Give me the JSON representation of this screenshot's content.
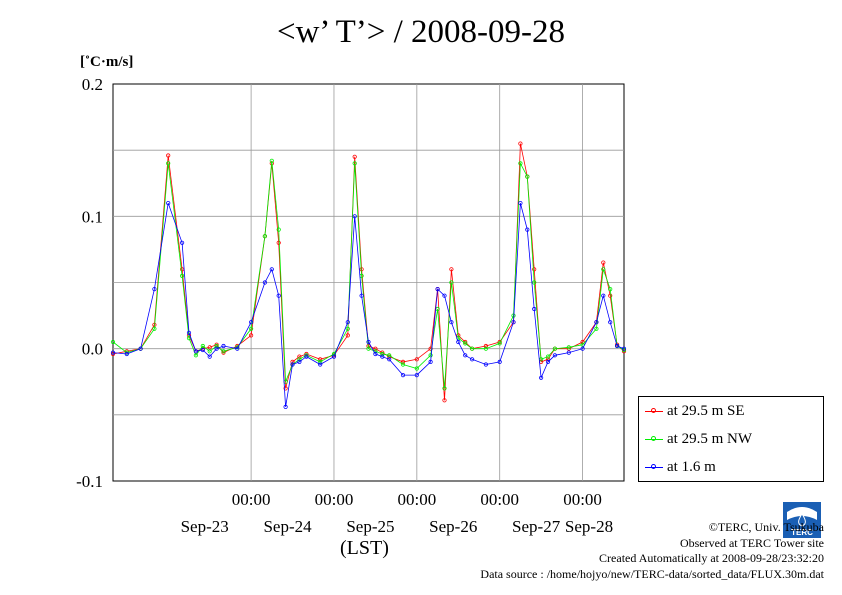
{
  "title": "<w’ T’> / 2008-09-28",
  "y_unit": "[˚C·m/s]",
  "x_axis_label": "(LST)",
  "credits": {
    "copyright": "©TERC, Univ. Tsukuba",
    "observed": "Observed at TERC Tower site",
    "created": "Created Automatically at 2008-09-28/23:32:20",
    "source": "Data source : /home/hojyo/new/TERC-data/sorted_data/FLUX.30m.dat"
  },
  "logo_text": "TERC",
  "chart_data": {
    "type": "line",
    "ylim": [
      -0.1,
      0.2
    ],
    "xlim": [
      "2008-09-22 08:00",
      "2008-09-28 12:00"
    ],
    "x_tick_labels": [
      "00:00",
      "00:00",
      "00:00",
      "00:00",
      "00:00"
    ],
    "date_labels": [
      "Sep-23",
      "Sep-24",
      "Sep-25",
      "Sep-26",
      "Sep-27",
      "Sep-28"
    ],
    "y_tick_labels": [
      "0.2",
      "0.1",
      "0.0",
      "-0.1"
    ],
    "y_ticks": [
      0.2,
      0.1,
      0.0,
      -0.1
    ],
    "grid": true,
    "legend_position": "bottom-right",
    "colors": {
      "se": "#ff0000",
      "nw": "#00ee00",
      "low": "#0000ff"
    },
    "series": [
      {
        "name": "at 29.5 m SE",
        "x": [
          "2008-09-22 08:00",
          "2008-09-22 12:00",
          "2008-09-22 16:00",
          "2008-09-22 20:00",
          "2008-09-23 00:00",
          "2008-09-23 04:00",
          "2008-09-23 06:00",
          "2008-09-23 08:00",
          "2008-09-23 10:00",
          "2008-09-23 12:00",
          "2008-09-23 14:00",
          "2008-09-23 16:00",
          "2008-09-23 20:00",
          "2008-09-24 00:00",
          "2008-09-24 04:00",
          "2008-09-24 06:00",
          "2008-09-24 08:00",
          "2008-09-24 10:00",
          "2008-09-24 12:00",
          "2008-09-24 14:00",
          "2008-09-24 16:00",
          "2008-09-24 20:00",
          "2008-09-25 00:00",
          "2008-09-25 04:00",
          "2008-09-25 06:00",
          "2008-09-25 08:00",
          "2008-09-25 10:00",
          "2008-09-25 12:00",
          "2008-09-25 14:00",
          "2008-09-25 16:00",
          "2008-09-25 20:00",
          "2008-09-26 00:00",
          "2008-09-26 04:00",
          "2008-09-26 06:00",
          "2008-09-26 08:00",
          "2008-09-26 10:00",
          "2008-09-26 12:00",
          "2008-09-26 14:00",
          "2008-09-26 16:00",
          "2008-09-26 20:00",
          "2008-09-27 00:00",
          "2008-09-27 04:00",
          "2008-09-27 06:00",
          "2008-09-27 08:00",
          "2008-09-27 10:00",
          "2008-09-27 12:00",
          "2008-09-27 14:00",
          "2008-09-27 16:00",
          "2008-09-27 20:00",
          "2008-09-28 00:00",
          "2008-09-28 04:00",
          "2008-09-28 06:00",
          "2008-09-28 08:00",
          "2008-09-28 10:00",
          "2008-09-28 12:00"
        ],
        "values": [
          -0.004,
          -0.002,
          0.0,
          0.018,
          0.146,
          0.06,
          0.01,
          -0.002,
          0.0,
          0.001,
          0.003,
          -0.003,
          0.002,
          0.01,
          0.085,
          0.14,
          0.08,
          -0.03,
          -0.01,
          -0.006,
          -0.004,
          -0.008,
          -0.005,
          0.01,
          0.145,
          0.06,
          0.002,
          0.0,
          -0.003,
          -0.006,
          -0.01,
          -0.008,
          0.0,
          0.045,
          -0.039,
          0.06,
          0.01,
          0.005,
          0.0,
          0.002,
          0.005,
          0.02,
          0.155,
          0.13,
          0.06,
          -0.01,
          -0.008,
          0.0,
          0.0,
          0.005,
          0.02,
          0.065,
          0.04,
          0.003,
          -0.002
        ]
      },
      {
        "name": "at 29.5 m NW",
        "x": [
          "2008-09-22 08:00",
          "2008-09-22 12:00",
          "2008-09-22 16:00",
          "2008-09-22 20:00",
          "2008-09-23 00:00",
          "2008-09-23 04:00",
          "2008-09-23 06:00",
          "2008-09-23 08:00",
          "2008-09-23 10:00",
          "2008-09-23 12:00",
          "2008-09-23 14:00",
          "2008-09-23 16:00",
          "2008-09-23 20:00",
          "2008-09-24 00:00",
          "2008-09-24 04:00",
          "2008-09-24 06:00",
          "2008-09-24 08:00",
          "2008-09-24 10:00",
          "2008-09-24 12:00",
          "2008-09-24 14:00",
          "2008-09-24 16:00",
          "2008-09-24 20:00",
          "2008-09-25 00:00",
          "2008-09-25 04:00",
          "2008-09-25 06:00",
          "2008-09-25 08:00",
          "2008-09-25 10:00",
          "2008-09-25 12:00",
          "2008-09-25 14:00",
          "2008-09-25 16:00",
          "2008-09-25 20:00",
          "2008-09-26 00:00",
          "2008-09-26 04:00",
          "2008-09-26 06:00",
          "2008-09-26 08:00",
          "2008-09-26 10:00",
          "2008-09-26 12:00",
          "2008-09-26 14:00",
          "2008-09-26 16:00",
          "2008-09-26 20:00",
          "2008-09-27 00:00",
          "2008-09-27 04:00",
          "2008-09-27 06:00",
          "2008-09-27 08:00",
          "2008-09-27 10:00",
          "2008-09-27 12:00",
          "2008-09-27 14:00",
          "2008-09-27 16:00",
          "2008-09-27 20:00",
          "2008-09-28 00:00",
          "2008-09-28 04:00",
          "2008-09-28 06:00",
          "2008-09-28 08:00",
          "2008-09-28 10:00",
          "2008-09-28 12:00"
        ],
        "values": [
          0.005,
          -0.003,
          0.0,
          0.015,
          0.14,
          0.055,
          0.008,
          -0.005,
          0.002,
          -0.002,
          0.002,
          -0.002,
          0.001,
          0.015,
          0.085,
          0.142,
          0.09,
          -0.025,
          -0.012,
          -0.008,
          -0.005,
          -0.01,
          -0.004,
          0.015,
          0.14,
          0.055,
          0.0,
          -0.002,
          -0.004,
          -0.005,
          -0.012,
          -0.015,
          -0.005,
          0.03,
          -0.03,
          0.05,
          0.008,
          0.004,
          0.0,
          0.0,
          0.004,
          0.025,
          0.14,
          0.13,
          0.05,
          -0.008,
          -0.006,
          0.0,
          0.001,
          0.003,
          0.015,
          0.06,
          0.045,
          0.002,
          -0.001
        ]
      },
      {
        "name": "at 1.6 m",
        "x": [
          "2008-09-22 08:00",
          "2008-09-22 12:00",
          "2008-09-22 16:00",
          "2008-09-22 20:00",
          "2008-09-23 00:00",
          "2008-09-23 04:00",
          "2008-09-23 06:00",
          "2008-09-23 08:00",
          "2008-09-23 10:00",
          "2008-09-23 12:00",
          "2008-09-23 14:00",
          "2008-09-23 16:00",
          "2008-09-23 20:00",
          "2008-09-24 00:00",
          "2008-09-24 04:00",
          "2008-09-24 06:00",
          "2008-09-24 08:00",
          "2008-09-24 10:00",
          "2008-09-24 12:00",
          "2008-09-24 14:00",
          "2008-09-24 16:00",
          "2008-09-24 20:00",
          "2008-09-25 00:00",
          "2008-09-25 04:00",
          "2008-09-25 06:00",
          "2008-09-25 08:00",
          "2008-09-25 10:00",
          "2008-09-25 12:00",
          "2008-09-25 14:00",
          "2008-09-25 16:00",
          "2008-09-25 20:00",
          "2008-09-26 00:00",
          "2008-09-26 04:00",
          "2008-09-26 06:00",
          "2008-09-26 08:00",
          "2008-09-26 10:00",
          "2008-09-26 12:00",
          "2008-09-26 14:00",
          "2008-09-26 16:00",
          "2008-09-26 20:00",
          "2008-09-27 00:00",
          "2008-09-27 04:00",
          "2008-09-27 06:00",
          "2008-09-27 08:00",
          "2008-09-27 10:00",
          "2008-09-27 12:00",
          "2008-09-27 14:00",
          "2008-09-27 16:00",
          "2008-09-27 20:00",
          "2008-09-28 00:00",
          "2008-09-28 04:00",
          "2008-09-28 06:00",
          "2008-09-28 08:00",
          "2008-09-28 10:00",
          "2008-09-28 12:00"
        ],
        "values": [
          -0.003,
          -0.004,
          0.0,
          0.045,
          0.11,
          0.08,
          0.012,
          -0.002,
          -0.001,
          -0.006,
          0.0,
          0.002,
          0.0,
          0.02,
          0.05,
          0.06,
          0.04,
          -0.044,
          -0.012,
          -0.01,
          -0.006,
          -0.012,
          -0.006,
          0.02,
          0.1,
          0.04,
          0.005,
          -0.004,
          -0.006,
          -0.008,
          -0.02,
          -0.02,
          -0.01,
          0.045,
          0.04,
          0.02,
          0.005,
          -0.005,
          -0.008,
          -0.012,
          -0.01,
          0.02,
          0.11,
          0.09,
          0.03,
          -0.022,
          -0.01,
          -0.005,
          -0.003,
          0.0,
          0.02,
          0.04,
          0.02,
          0.002,
          0.0
        ]
      }
    ]
  }
}
